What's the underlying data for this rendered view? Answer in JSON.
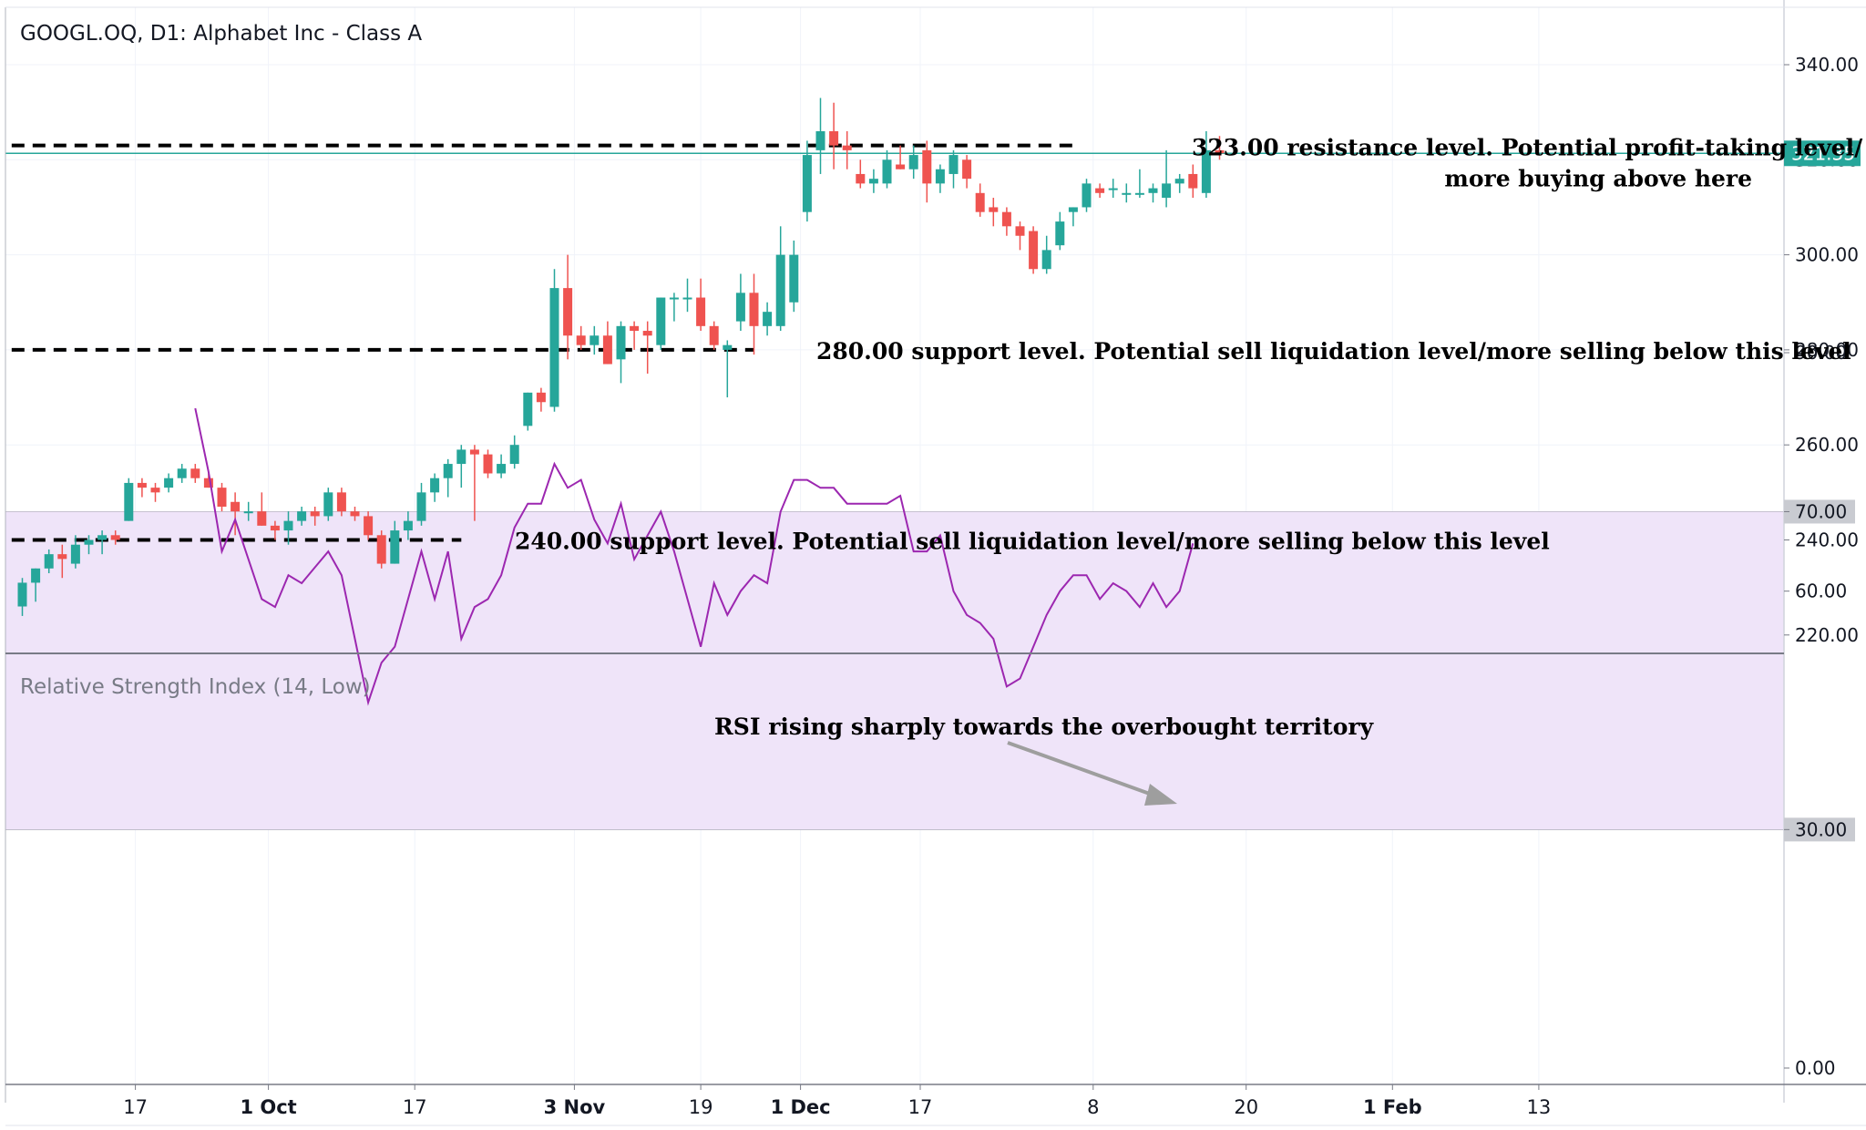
{
  "title": "GOOGL.OQ, D1: Alphabet Inc - Class A",
  "colors": {
    "up": "#26a69a",
    "down": "#ef5350",
    "rsi_line": "#9c27b0",
    "rsi_band": "#efe4f9",
    "last_price": "#26a69a",
    "level_line": "#000000",
    "grid": "#f0f3fa",
    "axis": "#b2b5be",
    "arrow": "#9e9e9e"
  },
  "chart_data": [
    {
      "type": "candlestick",
      "title": "GOOGL.OQ, D1: Alphabet Inc - Class A",
      "ylim": [
        208,
        347
      ],
      "y_ticks": [
        "220.00",
        "240.00",
        "260.00",
        "280.00",
        "300.00",
        "320.00",
        "340.00"
      ],
      "x_ticks": [
        {
          "label": "17",
          "index": 8.5,
          "bold": false
        },
        {
          "label": "1 Oct",
          "index": 18.5,
          "bold": true
        },
        {
          "label": "17",
          "index": 29.5,
          "bold": false
        },
        {
          "label": "3 Nov",
          "index": 41.5,
          "bold": true
        },
        {
          "label": "19",
          "index": 51,
          "bold": false
        },
        {
          "label": "1 Dec",
          "index": 58.5,
          "bold": true
        },
        {
          "label": "17",
          "index": 67.5,
          "bold": false
        },
        {
          "label": "8",
          "index": 80.5,
          "bold": false
        },
        {
          "label": "20",
          "index": 92,
          "bold": false
        },
        {
          "label": "1 Feb",
          "index": 103,
          "bold": true
        },
        {
          "label": "13",
          "index": 114,
          "bold": false
        }
      ],
      "last_price": {
        "value": 321.35,
        "label": "321.35"
      },
      "candles": [
        {
          "o": 226,
          "h": 232,
          "l": 224,
          "c": 231
        },
        {
          "o": 231,
          "h": 234,
          "l": 227,
          "c": 234
        },
        {
          "o": 234,
          "h": 238,
          "l": 233,
          "c": 237
        },
        {
          "o": 237,
          "h": 239,
          "l": 232,
          "c": 236
        },
        {
          "o": 235,
          "h": 241,
          "l": 234,
          "c": 239
        },
        {
          "o": 239,
          "h": 241,
          "l": 237,
          "c": 240
        },
        {
          "o": 240,
          "h": 242,
          "l": 237,
          "c": 241
        },
        {
          "o": 241,
          "h": 242,
          "l": 239,
          "c": 240
        },
        {
          "o": 244,
          "h": 253,
          "l": 244,
          "c": 252
        },
        {
          "o": 252,
          "h": 253,
          "l": 249,
          "c": 251
        },
        {
          "o": 251,
          "h": 252,
          "l": 248,
          "c": 250
        },
        {
          "o": 251,
          "h": 254,
          "l": 250,
          "c": 253
        },
        {
          "o": 253,
          "h": 256,
          "l": 252,
          "c": 255
        },
        {
          "o": 255,
          "h": 256,
          "l": 252,
          "c": 253
        },
        {
          "o": 253,
          "h": 254,
          "l": 251,
          "c": 251
        },
        {
          "o": 251,
          "h": 252,
          "l": 246,
          "c": 247
        },
        {
          "o": 248,
          "h": 250,
          "l": 241,
          "c": 246
        },
        {
          "o": 246,
          "h": 248,
          "l": 244,
          "c": 246
        },
        {
          "o": 246,
          "h": 250,
          "l": 243,
          "c": 243
        },
        {
          "o": 243,
          "h": 244,
          "l": 240,
          "c": 242
        },
        {
          "o": 242,
          "h": 246,
          "l": 239,
          "c": 244
        },
        {
          "o": 244,
          "h": 247,
          "l": 243,
          "c": 246
        },
        {
          "o": 246,
          "h": 247,
          "l": 243,
          "c": 245
        },
        {
          "o": 245,
          "h": 251,
          "l": 244,
          "c": 250
        },
        {
          "o": 250,
          "h": 251,
          "l": 245,
          "c": 246
        },
        {
          "o": 246,
          "h": 247,
          "l": 244,
          "c": 245
        },
        {
          "o": 245,
          "h": 246,
          "l": 240,
          "c": 241
        },
        {
          "o": 241,
          "h": 242,
          "l": 234,
          "c": 235
        },
        {
          "o": 235,
          "h": 244,
          "l": 235,
          "c": 242
        },
        {
          "o": 242,
          "h": 246,
          "l": 240,
          "c": 244
        },
        {
          "o": 244,
          "h": 252,
          "l": 243,
          "c": 250
        },
        {
          "o": 250,
          "h": 254,
          "l": 248,
          "c": 253
        },
        {
          "o": 253,
          "h": 257,
          "l": 249,
          "c": 256
        },
        {
          "o": 256,
          "h": 260,
          "l": 251,
          "c": 259
        },
        {
          "o": 259,
          "h": 260,
          "l": 244,
          "c": 258
        },
        {
          "o": 258,
          "h": 259,
          "l": 253,
          "c": 254
        },
        {
          "o": 254,
          "h": 258,
          "l": 253,
          "c": 256
        },
        {
          "o": 256,
          "h": 262,
          "l": 255,
          "c": 260
        },
        {
          "o": 264,
          "h": 271,
          "l": 263,
          "c": 271
        },
        {
          "o": 271,
          "h": 272,
          "l": 267,
          "c": 269
        },
        {
          "o": 268,
          "h": 297,
          "l": 267,
          "c": 293
        },
        {
          "o": 293,
          "h": 300,
          "l": 278,
          "c": 283
        },
        {
          "o": 283,
          "h": 285,
          "l": 280,
          "c": 281
        },
        {
          "o": 281,
          "h": 285,
          "l": 279,
          "c": 283
        },
        {
          "o": 283,
          "h": 286,
          "l": 277,
          "c": 277
        },
        {
          "o": 278,
          "h": 286,
          "l": 273,
          "c": 285
        },
        {
          "o": 285,
          "h": 286,
          "l": 280,
          "c": 284
        },
        {
          "o": 284,
          "h": 286,
          "l": 275,
          "c": 283
        },
        {
          "o": 281,
          "h": 291,
          "l": 280,
          "c": 291
        },
        {
          "o": 291,
          "h": 292,
          "l": 286,
          "c": 291
        },
        {
          "o": 291,
          "h": 295,
          "l": 288,
          "c": 291
        },
        {
          "o": 291,
          "h": 295,
          "l": 284,
          "c": 285
        },
        {
          "o": 285,
          "h": 286,
          "l": 280,
          "c": 281
        },
        {
          "o": 280,
          "h": 282,
          "l": 270,
          "c": 281
        },
        {
          "o": 286,
          "h": 296,
          "l": 284,
          "c": 292
        },
        {
          "o": 292,
          "h": 296,
          "l": 279,
          "c": 285
        },
        {
          "o": 285,
          "h": 290,
          "l": 283,
          "c": 288
        },
        {
          "o": 285,
          "h": 306,
          "l": 284,
          "c": 300
        },
        {
          "o": 290,
          "h": 303,
          "l": 288,
          "c": 300
        },
        {
          "o": 309,
          "h": 324,
          "l": 307,
          "c": 321
        },
        {
          "o": 322,
          "h": 333,
          "l": 317,
          "c": 326
        },
        {
          "o": 326,
          "h": 332,
          "l": 318,
          "c": 323
        },
        {
          "o": 323,
          "h": 326,
          "l": 318,
          "c": 322
        },
        {
          "o": 317,
          "h": 320,
          "l": 314,
          "c": 315
        },
        {
          "o": 315,
          "h": 318,
          "l": 313,
          "c": 316
        },
        {
          "o": 315,
          "h": 322,
          "l": 314,
          "c": 320
        },
        {
          "o": 319,
          "h": 323,
          "l": 318,
          "c": 318
        },
        {
          "o": 318,
          "h": 323,
          "l": 316,
          "c": 321
        },
        {
          "o": 322,
          "h": 324,
          "l": 311,
          "c": 315
        },
        {
          "o": 315,
          "h": 319,
          "l": 313,
          "c": 318
        },
        {
          "o": 317,
          "h": 322,
          "l": 314,
          "c": 321
        },
        {
          "o": 320,
          "h": 321,
          "l": 314,
          "c": 316
        },
        {
          "o": 313,
          "h": 315,
          "l": 308,
          "c": 309
        },
        {
          "o": 310,
          "h": 312,
          "l": 306,
          "c": 309
        },
        {
          "o": 309,
          "h": 310,
          "l": 304,
          "c": 306
        },
        {
          "o": 306,
          "h": 307,
          "l": 301,
          "c": 304
        },
        {
          "o": 305,
          "h": 306,
          "l": 296,
          "c": 297
        },
        {
          "o": 297,
          "h": 304,
          "l": 296,
          "c": 301
        },
        {
          "o": 302,
          "h": 309,
          "l": 301,
          "c": 307
        },
        {
          "o": 309,
          "h": 310,
          "l": 306,
          "c": 310
        },
        {
          "o": 310,
          "h": 316,
          "l": 309,
          "c": 315
        },
        {
          "o": 314,
          "h": 315,
          "l": 312,
          "c": 313
        },
        {
          "o": 314,
          "h": 316,
          "l": 312,
          "c": 314
        },
        {
          "o": 313,
          "h": 315,
          "l": 311,
          "c": 313
        },
        {
          "o": 313,
          "h": 318,
          "l": 312,
          "c": 313
        },
        {
          "o": 313,
          "h": 315,
          "l": 311,
          "c": 314
        },
        {
          "o": 312,
          "h": 322,
          "l": 310,
          "c": 315
        },
        {
          "o": 315,
          "h": 317,
          "l": 313,
          "c": 316
        },
        {
          "o": 317,
          "h": 319,
          "l": 312,
          "c": 314
        },
        {
          "o": 313,
          "h": 326,
          "l": 312,
          "c": 322
        },
        {
          "o": 322,
          "h": 325,
          "l": 320,
          "c": 321.35
        }
      ],
      "levels": [
        {
          "value": 323,
          "label": "323.00 resistance level. Potential profit-taking level/",
          "label2": "more buying above here",
          "from": -0.8,
          "to": 79
        },
        {
          "value": 280,
          "label": "280.00 support level. Potential sell liquidation level/more selling below this level",
          "from": -0.8,
          "to": 55
        },
        {
          "value": 240,
          "label": "240.00 support level. Potential sell liquidation level/more selling below this level",
          "from": -0.8,
          "to": 33
        }
      ]
    },
    {
      "type": "line",
      "title": "Relative Strength Index (14, Low)",
      "ylim": [
        -5,
        102
      ],
      "y_ticks": [
        "0.00",
        "30.00",
        "60.00",
        "70.00",
        "90.00"
      ],
      "band": [
        30,
        70
      ],
      "band_labels": [
        "30.00",
        "70.00"
      ],
      "start_index": 13,
      "values": [
        83,
        75,
        65,
        69,
        64,
        59,
        58,
        62,
        61,
        63,
        65,
        62,
        54,
        46,
        51,
        53,
        59,
        65,
        59,
        65,
        54,
        58,
        59,
        62,
        68,
        71,
        71,
        76,
        73,
        74,
        69,
        66,
        71,
        64,
        67,
        70,
        65,
        59,
        53,
        61,
        57,
        60,
        62,
        61,
        70,
        74,
        74,
        73,
        73,
        71,
        71,
        71,
        71,
        72,
        65,
        65,
        67,
        60,
        57,
        56,
        54,
        48,
        49,
        53,
        57,
        60,
        62,
        62,
        59,
        61,
        60,
        58,
        61,
        58,
        60,
        66
      ],
      "annotation": "RSI rising sharply towards the overbought territory"
    }
  ]
}
